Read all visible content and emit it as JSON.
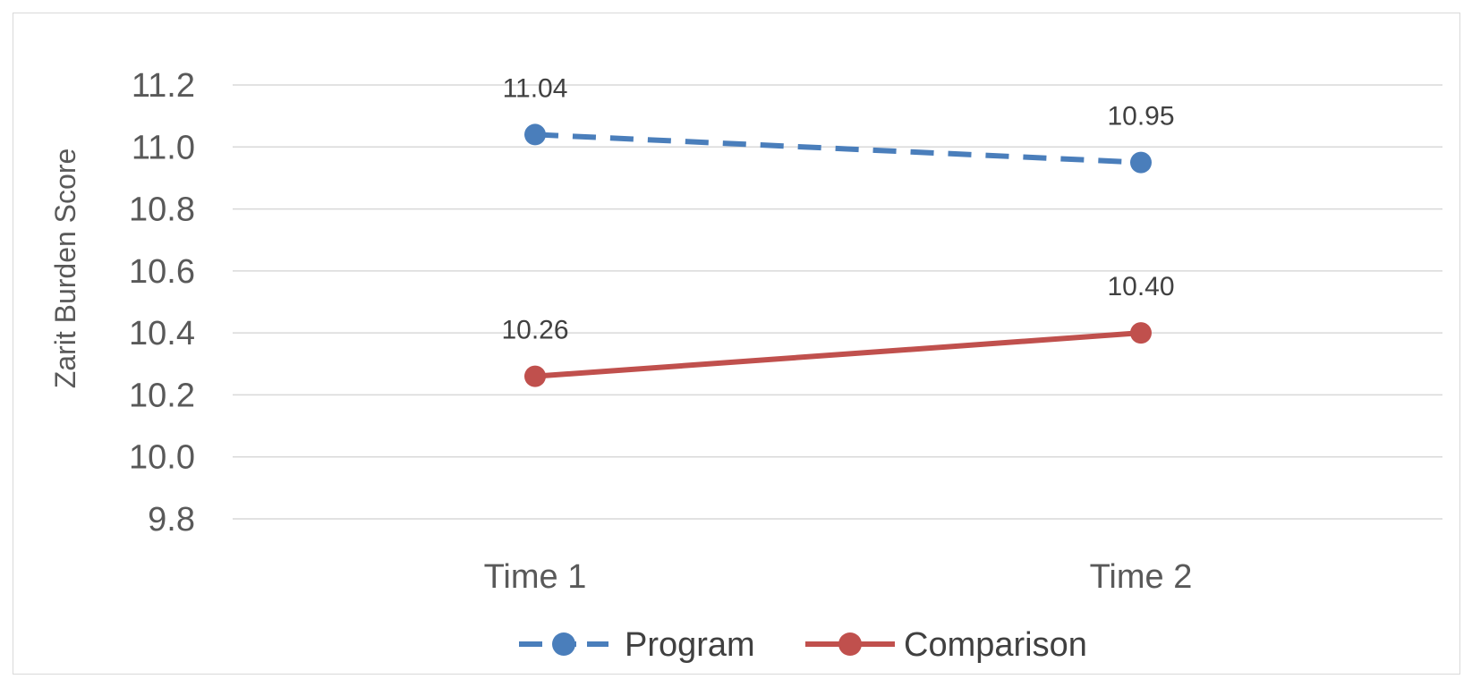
{
  "chart_data": {
    "type": "line",
    "ylabel": "Zarit Burden Score",
    "xlabel": "",
    "categories": [
      "Time 1",
      "Time 2"
    ],
    "ylim": [
      9.8,
      11.2
    ],
    "yticks": [
      "9.8",
      "10.0",
      "10.2",
      "10.4",
      "10.6",
      "10.8",
      "11.0",
      "11.2"
    ],
    "grid": true,
    "legend_position": "bottom",
    "series": [
      {
        "name": "Program",
        "values": [
          11.04,
          10.95
        ],
        "labels": [
          "11.04",
          "10.95"
        ],
        "color": "#4a7ebb",
        "line_style": "dashed"
      },
      {
        "name": "Comparison",
        "values": [
          10.26,
          10.4
        ],
        "labels": [
          "10.26",
          "10.40"
        ],
        "color": "#c0504d",
        "line_style": "solid"
      }
    ]
  }
}
